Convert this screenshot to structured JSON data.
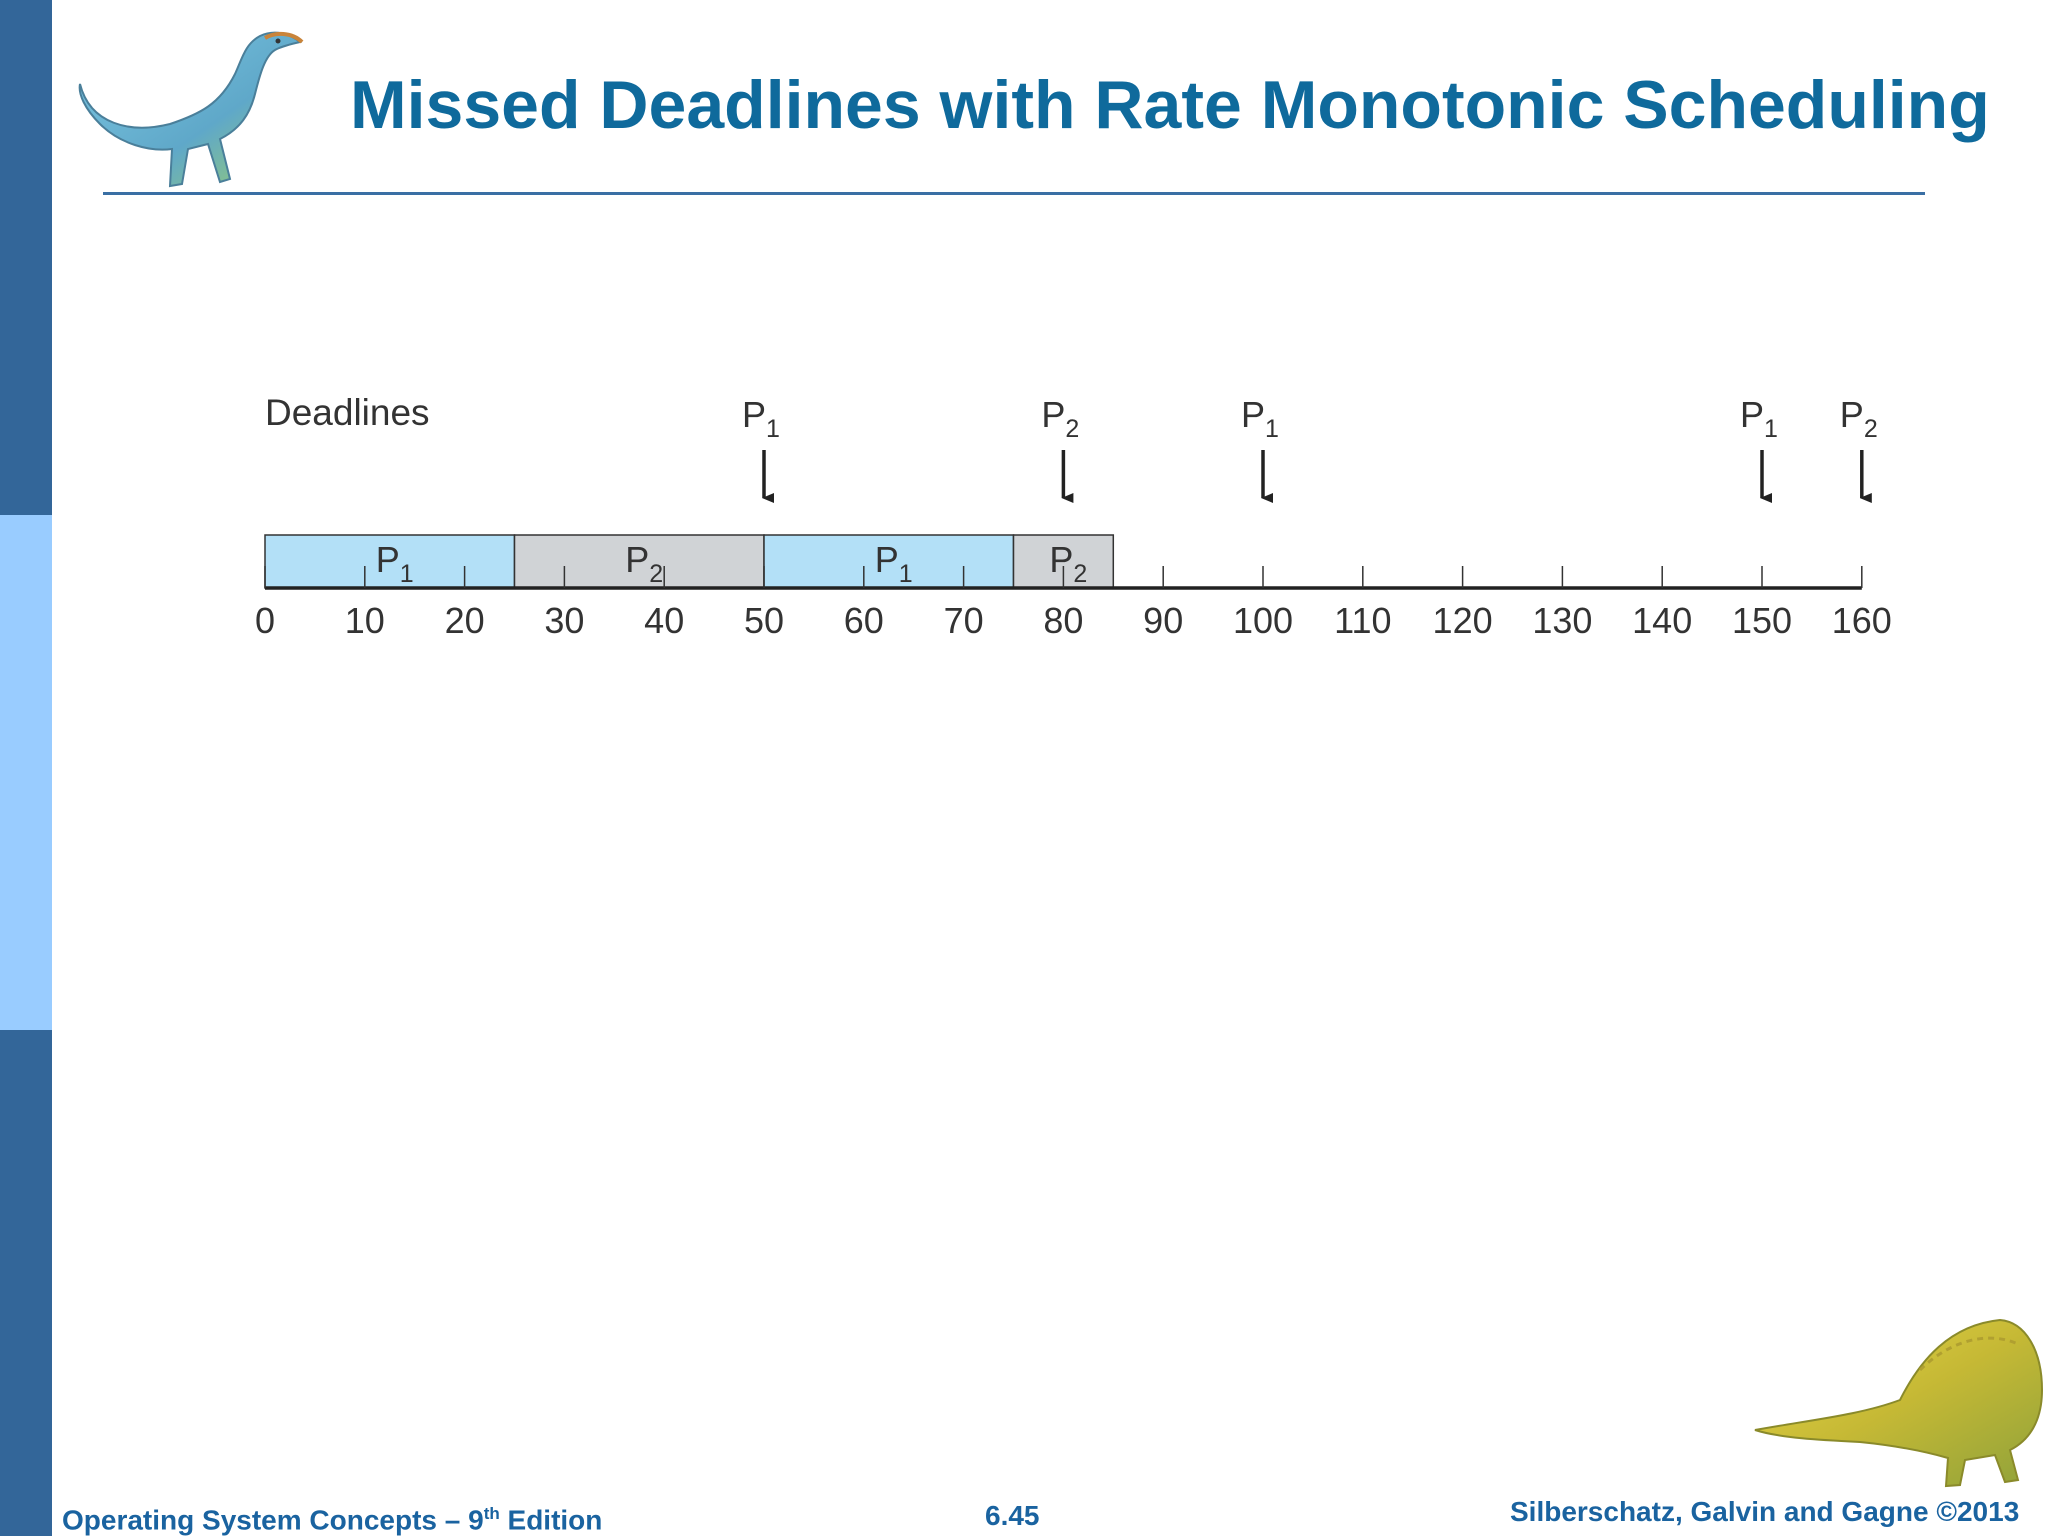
{
  "slide": {
    "title": "Missed Deadlines with Rate Monotonic Scheduling",
    "footer_left_prefix": "Operating System Concepts – 9",
    "footer_left_sup": "th",
    "footer_left_suffix": " Edition",
    "footer_center": "6.45",
    "footer_right": "Silberschatz, Galvin and Gagne ©2013"
  },
  "colors": {
    "sidebar_dark": "#336699",
    "sidebar_light": "#99ccff",
    "title": "#0f6a9c",
    "p1_block": "#b3e0f7",
    "p2_block": "#d0d3d6"
  },
  "diagram": {
    "deadlines_label": "Deadlines",
    "axis_ticks": [
      0,
      10,
      20,
      30,
      40,
      50,
      60,
      70,
      80,
      90,
      100,
      110,
      120,
      130,
      140,
      150,
      160
    ],
    "blocks": [
      {
        "process": "P",
        "sub": "1",
        "start": 0,
        "end": 25,
        "kind": "p1"
      },
      {
        "process": "P",
        "sub": "2",
        "start": 25,
        "end": 50,
        "kind": "p2"
      },
      {
        "process": "P",
        "sub": "1",
        "start": 50,
        "end": 75,
        "kind": "p1"
      },
      {
        "process": "P",
        "sub": "2",
        "start": 75,
        "end": 85,
        "kind": "p2"
      }
    ],
    "deadlines": [
      {
        "process": "P",
        "sub": "1",
        "time": 50
      },
      {
        "process": "P",
        "sub": "2",
        "time": 80
      },
      {
        "process": "P",
        "sub": "1",
        "time": 100
      },
      {
        "process": "P",
        "sub": "1",
        "time": 150
      },
      {
        "process": "P",
        "sub": "2",
        "time": 160
      }
    ]
  }
}
